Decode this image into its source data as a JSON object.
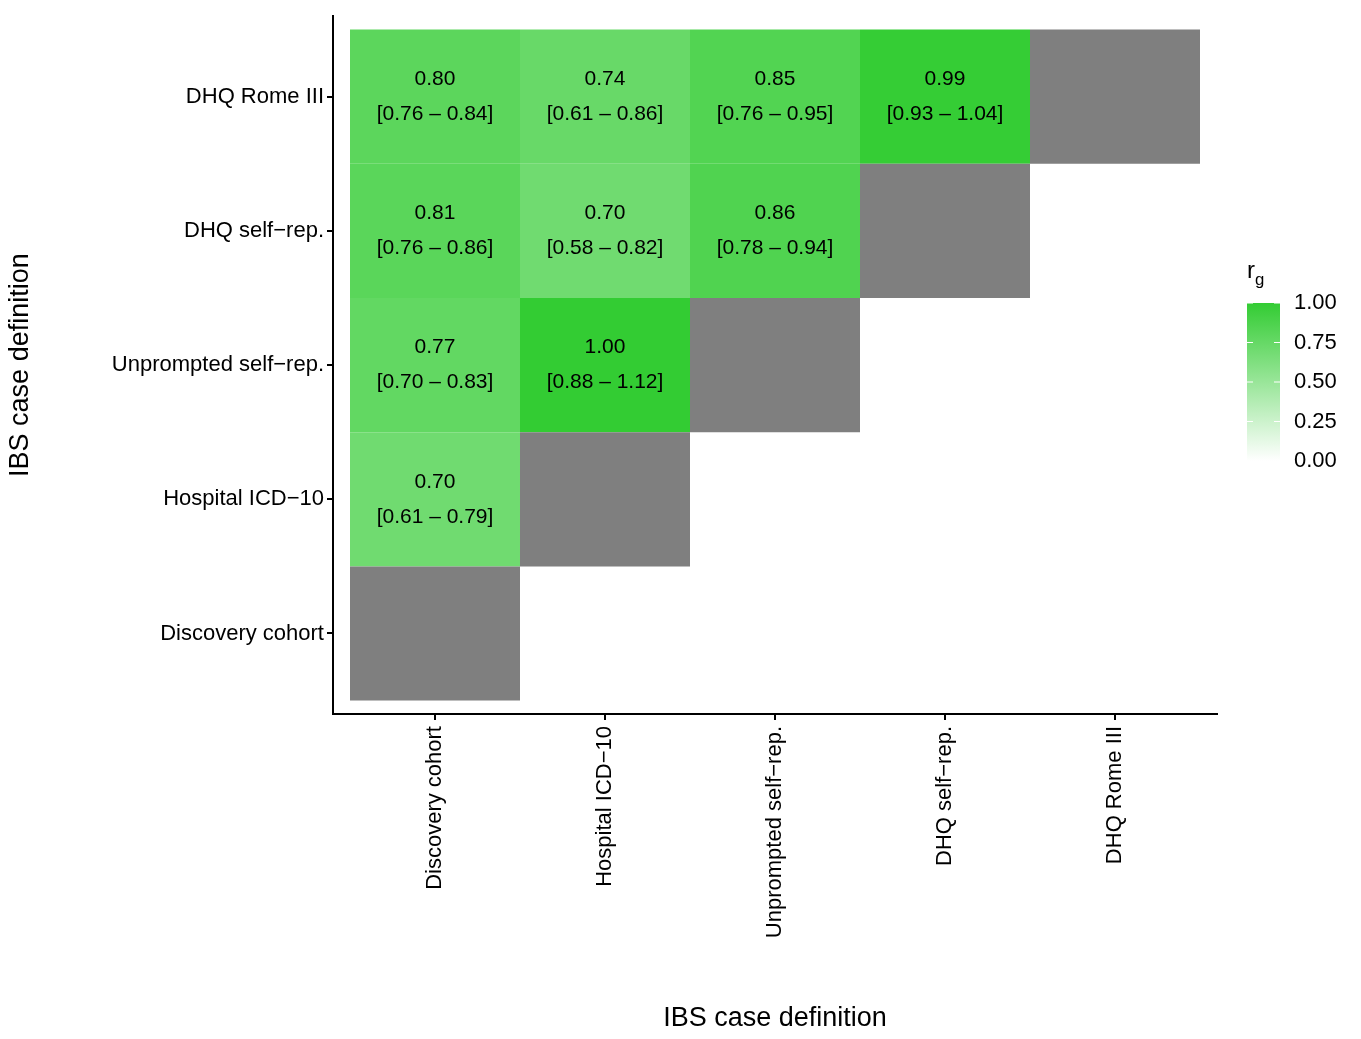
{
  "chart_data": {
    "type": "heatmap",
    "xlabel": "IBS case definition",
    "ylabel": "IBS case definition",
    "clabel": "r$_{g}$",
    "categories": [
      "Discovery cohort",
      "Hospital ICD−10",
      "Unprompted self−rep.",
      "DHQ self−rep.",
      "DHQ Rome III"
    ],
    "y_categories": [
      "DHQ Rome III",
      "DHQ self−rep.",
      "Unprompted self−rep.",
      "Hospital ICD−10",
      "Discovery cohort"
    ],
    "cells": [
      [
        0.8,
        0.74,
        0.85,
        0.99,
        null
      ],
      [
        0.81,
        0.7,
        0.86,
        null,
        null
      ],
      [
        0.77,
        1.0,
        null,
        null,
        null
      ],
      [
        0.7,
        null,
        null,
        null,
        null
      ],
      [
        null,
        null,
        null,
        null,
        null
      ]
    ],
    "cell_labels": [
      [
        "0.80\n[0.76 – 0.84]",
        "0.74\n[0.61 – 0.86]",
        "0.85\n[0.76 – 0.95]",
        "0.99\n[0.93 – 1.04]",
        null
      ],
      [
        "0.81\n[0.76 – 0.86]",
        "0.70\n[0.58 – 0.82]",
        "0.86\n[0.78 – 0.94]",
        null,
        null
      ],
      [
        "0.77\n[0.70 – 0.83]",
        "1.00\n[0.88 – 1.12]",
        null,
        null,
        null
      ],
      [
        "0.70\n[0.61 – 0.79]",
        null,
        null,
        null,
        null
      ],
      [
        null,
        null,
        null,
        null,
        null
      ]
    ],
    "clim": [
      0,
      1
    ],
    "cticks": [
      {
        "value": 0,
        "label": "0.00"
      },
      {
        "value": 0.25,
        "label": "0.25"
      },
      {
        "value": 0.5,
        "label": "0.50"
      },
      {
        "value": 0.75,
        "label": "0.75"
      },
      {
        "value": 1,
        "label": "1.00"
      }
    ],
    "colors": [
      "#ffffff",
      "#33cc33"
    ]
  }
}
